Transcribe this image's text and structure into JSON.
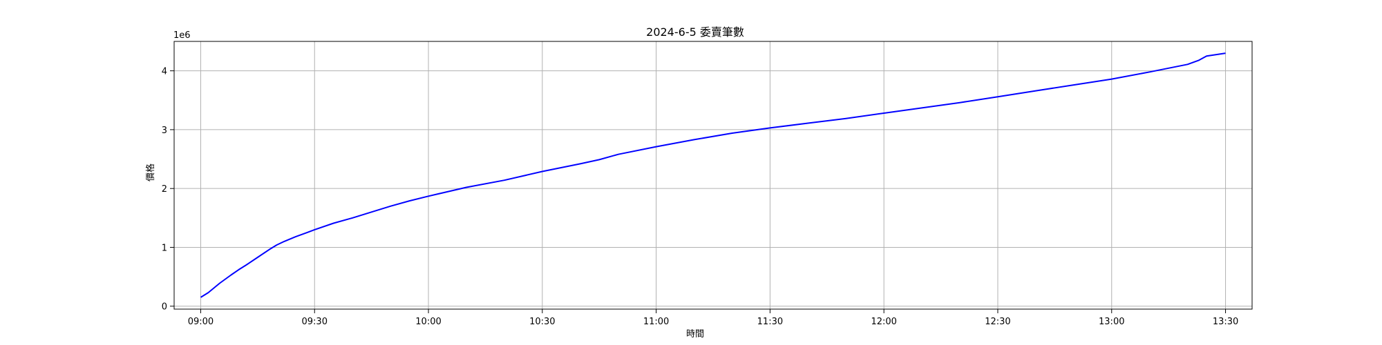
{
  "chart_data": {
    "type": "line",
    "title": "2024-6-5 委賣筆數",
    "xlabel": "時間",
    "ylabel": "價格",
    "y_offset_label": "1e6",
    "grid": true,
    "colors": {
      "line": "#0000ff",
      "grid": "#b0b0b0",
      "axes": "#000000"
    },
    "x_range": [
      "08:53",
      "13:37"
    ],
    "y_range": [
      -0.05,
      4.5
    ],
    "x_ticks": [
      "09:00",
      "09:30",
      "10:00",
      "10:30",
      "11:00",
      "11:30",
      "12:00",
      "12:30",
      "13:00",
      "13:30"
    ],
    "y_ticks": [
      0,
      1,
      2,
      3,
      4
    ],
    "series": [
      {
        "x": [
          "09:00",
          "09:02",
          "09:05",
          "09:08",
          "09:10",
          "09:12",
          "09:15",
          "09:18",
          "09:20",
          "09:22",
          "09:25",
          "09:28",
          "09:30",
          "09:35",
          "09:40",
          "09:45",
          "09:50",
          "09:55",
          "10:00",
          "10:10",
          "10:20",
          "10:30",
          "10:40",
          "10:45",
          "10:50",
          "11:00",
          "11:10",
          "11:20",
          "11:30",
          "11:40",
          "11:50",
          "12:00",
          "12:10",
          "12:20",
          "12:30",
          "12:40",
          "12:50",
          "13:00",
          "13:10",
          "13:20",
          "13:23",
          "13:25",
          "13:30"
        ],
        "values": [
          0.15,
          0.23,
          0.39,
          0.53,
          0.62,
          0.7,
          0.83,
          0.96,
          1.04,
          1.1,
          1.18,
          1.25,
          1.3,
          1.41,
          1.5,
          1.6,
          1.7,
          1.79,
          1.87,
          2.02,
          2.14,
          2.29,
          2.42,
          2.49,
          2.58,
          2.71,
          2.83,
          2.94,
          3.03,
          3.11,
          3.19,
          3.28,
          3.37,
          3.46,
          3.56,
          3.66,
          3.76,
          3.86,
          3.98,
          4.11,
          4.18,
          4.25,
          4.3
        ]
      }
    ]
  }
}
